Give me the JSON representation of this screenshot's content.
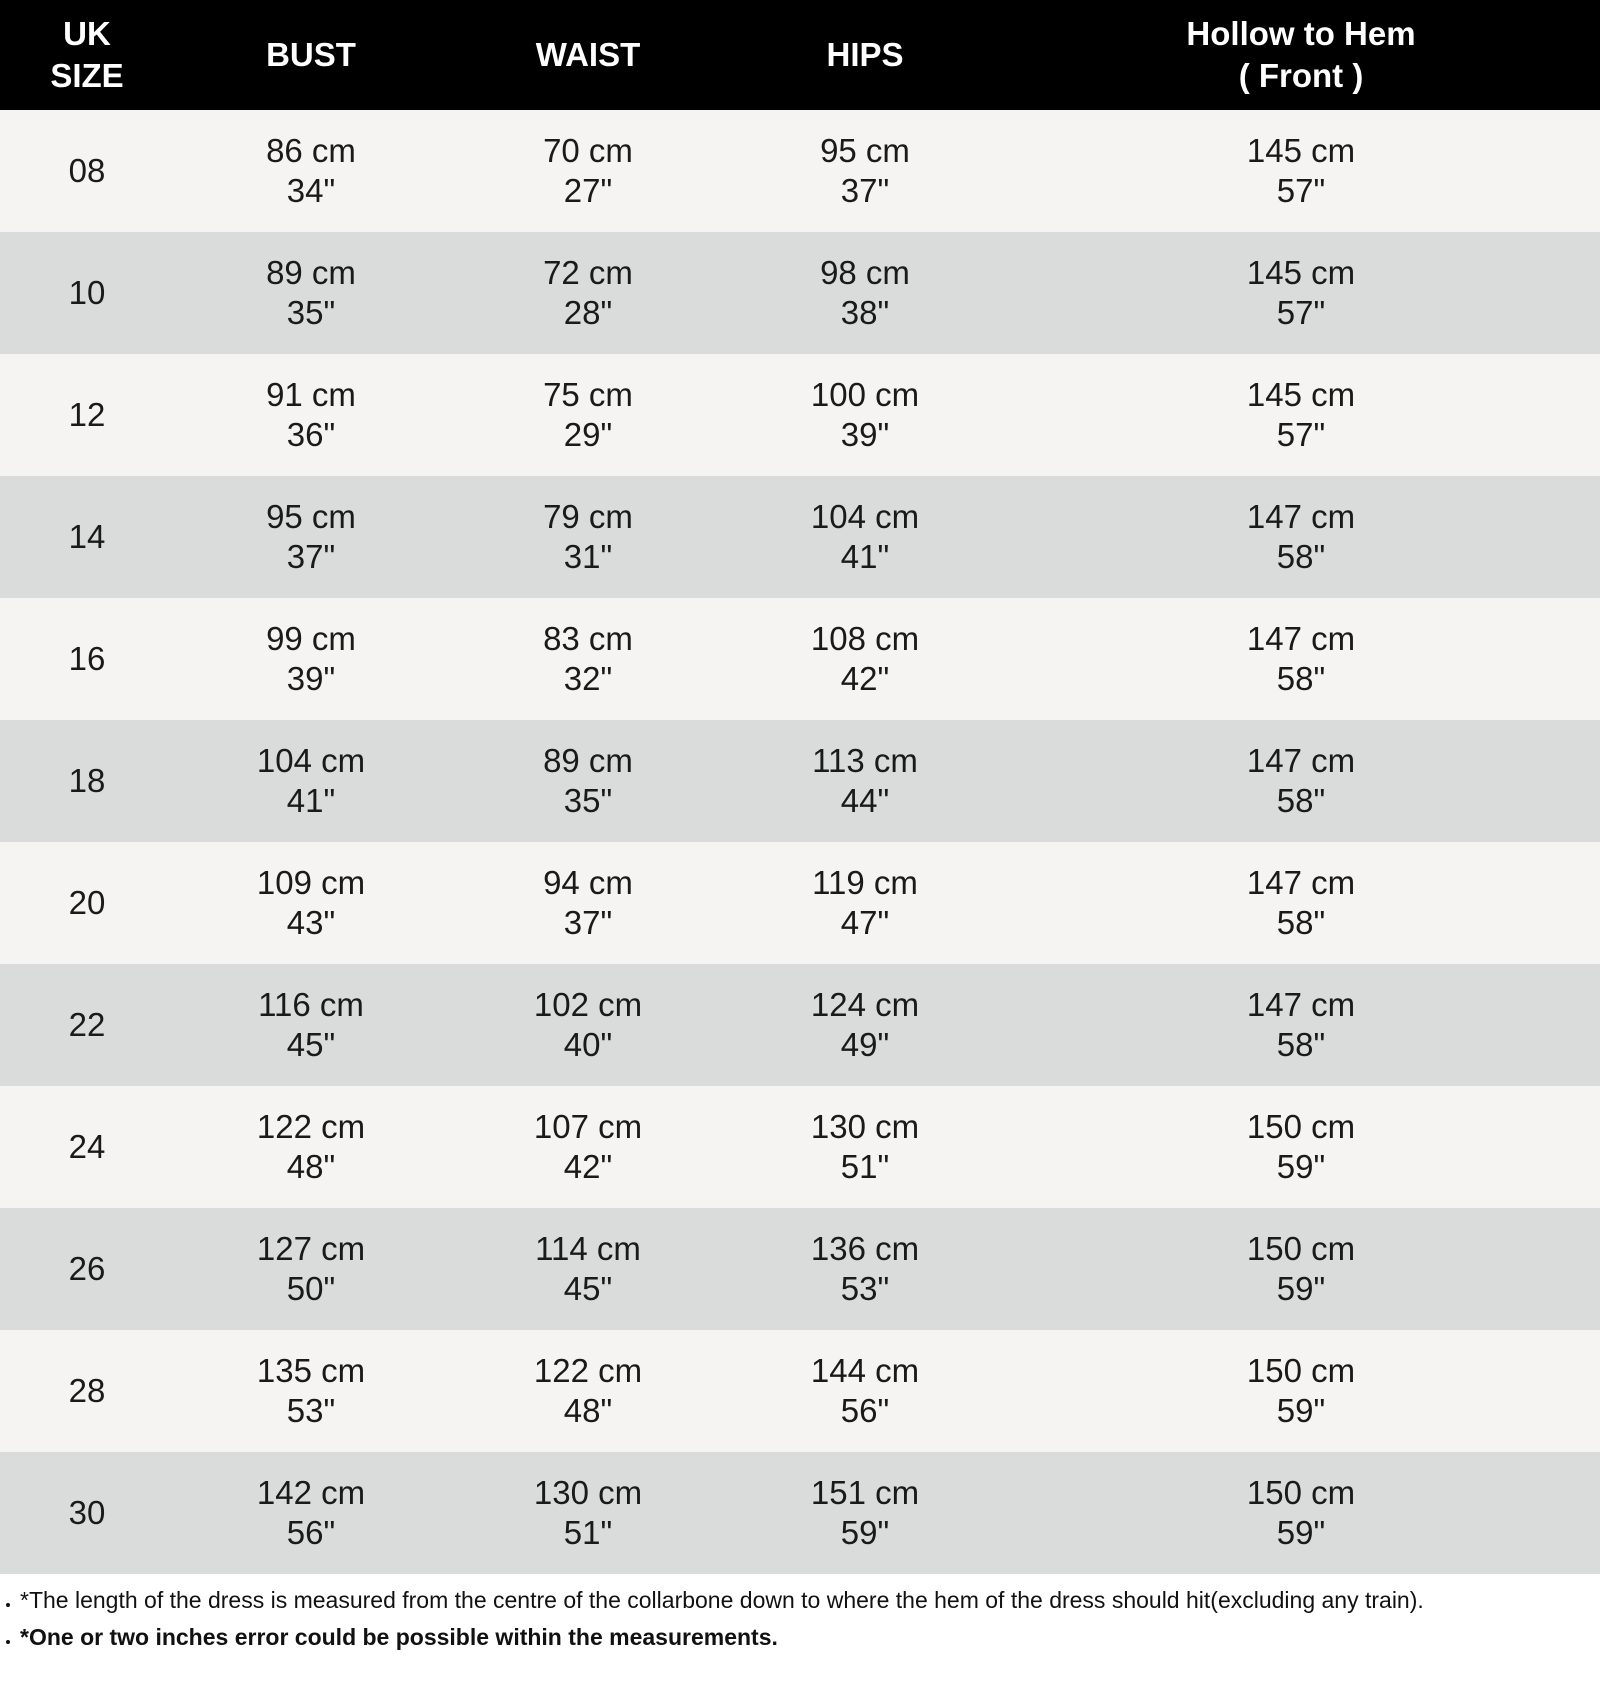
{
  "header": {
    "size_line1": "UK",
    "size_line2": "SIZE",
    "bust": "BUST",
    "waist": "WAIST",
    "hips": "HIPS",
    "hem_line1": "Hollow to Hem",
    "hem_line2": "( Front )"
  },
  "rows": [
    {
      "size": "08",
      "bust_cm": "86 cm",
      "bust_in": "34\"",
      "waist_cm": "70 cm",
      "waist_in": "27\"",
      "hips_cm": "95 cm",
      "hips_in": "37\"",
      "hem_cm": "145 cm",
      "hem_in": "57\""
    },
    {
      "size": "10",
      "bust_cm": "89 cm",
      "bust_in": "35\"",
      "waist_cm": "72 cm",
      "waist_in": "28\"",
      "hips_cm": "98 cm",
      "hips_in": "38\"",
      "hem_cm": "145 cm",
      "hem_in": "57\""
    },
    {
      "size": "12",
      "bust_cm": "91 cm",
      "bust_in": "36\"",
      "waist_cm": "75 cm",
      "waist_in": "29\"",
      "hips_cm": "100 cm",
      "hips_in": "39\"",
      "hem_cm": "145 cm",
      "hem_in": "57\""
    },
    {
      "size": "14",
      "bust_cm": "95 cm",
      "bust_in": "37\"",
      "waist_cm": "79 cm",
      "waist_in": "31\"",
      "hips_cm": "104 cm",
      "hips_in": "41\"",
      "hem_cm": "147 cm",
      "hem_in": "58\""
    },
    {
      "size": "16",
      "bust_cm": "99 cm",
      "bust_in": "39\"",
      "waist_cm": "83 cm",
      "waist_in": "32\"",
      "hips_cm": "108 cm",
      "hips_in": "42\"",
      "hem_cm": "147 cm",
      "hem_in": "58\""
    },
    {
      "size": "18",
      "bust_cm": "104 cm",
      "bust_in": "41\"",
      "waist_cm": "89 cm",
      "waist_in": "35\"",
      "hips_cm": "113 cm",
      "hips_in": "44\"",
      "hem_cm": "147 cm",
      "hem_in": "58\""
    },
    {
      "size": "20",
      "bust_cm": "109 cm",
      "bust_in": "43\"",
      "waist_cm": "94 cm",
      "waist_in": "37\"",
      "hips_cm": "119 cm",
      "hips_in": "47\"",
      "hem_cm": "147 cm",
      "hem_in": "58\""
    },
    {
      "size": "22",
      "bust_cm": "116 cm",
      "bust_in": "45\"",
      "waist_cm": "102 cm",
      "waist_in": "40\"",
      "hips_cm": "124 cm",
      "hips_in": "49\"",
      "hem_cm": "147 cm",
      "hem_in": "58\""
    },
    {
      "size": "24",
      "bust_cm": "122 cm",
      "bust_in": "48\"",
      "waist_cm": "107 cm",
      "waist_in": "42\"",
      "hips_cm": "130 cm",
      "hips_in": "51\"",
      "hem_cm": "150 cm",
      "hem_in": "59\""
    },
    {
      "size": "26",
      "bust_cm": "127 cm",
      "bust_in": "50\"",
      "waist_cm": "114 cm",
      "waist_in": "45\"",
      "hips_cm": "136 cm",
      "hips_in": "53\"",
      "hem_cm": "150 cm",
      "hem_in": "59\""
    },
    {
      "size": "28",
      "bust_cm": "135 cm",
      "bust_in": "53\"",
      "waist_cm": "122 cm",
      "waist_in": "48\"",
      "hips_cm": "144 cm",
      "hips_in": "56\"",
      "hem_cm": "150 cm",
      "hem_in": "59\""
    },
    {
      "size": "30",
      "bust_cm": "142 cm",
      "bust_in": "56\"",
      "waist_cm": "130 cm",
      "waist_in": "51\"",
      "hips_cm": "151 cm",
      "hips_in": "59\"",
      "hem_cm": "150 cm",
      "hem_in": "59\""
    }
  ],
  "notes": [
    "*The length of the dress is measured from the centre of the collarbone down to where the hem of the dress should hit(excluding any train).",
    "*One or two inches error could be possible within the measurements."
  ],
  "colors": {
    "header_bg": "#000000",
    "row_light": "#f5f4f2",
    "row_grey": "#dadbdb"
  }
}
